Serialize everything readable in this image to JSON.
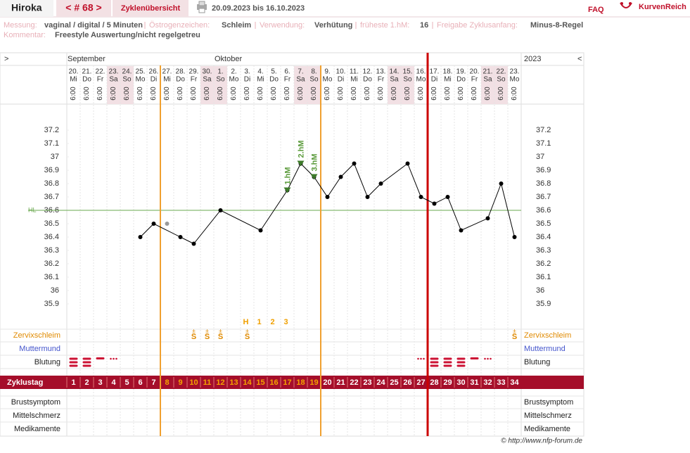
{
  "header": {
    "name": "Hiroka",
    "cycle": "< # 68 >",
    "overview": "Zyklenübersicht",
    "range": "20.09.2023 bis 16.10.2023",
    "faq": "FAQ",
    "logo": "KurvenReich"
  },
  "info": {
    "items": [
      {
        "label": "Messung:",
        "value": "vaginal / digital / 5 Minuten"
      },
      {
        "label": "Östrogenzeichen:",
        "value": "Schleim"
      },
      {
        "label": "Verwendung:",
        "value": "Verhütung"
      },
      {
        "label": "früheste 1.hM:",
        "value": "16"
      },
      {
        "label": "Freigabe Zyklusanfang:",
        "value": "Minus-8-Regel"
      }
    ],
    "comment_label": "Kommentar:",
    "comment": "Freestyle Auswertung/nicht regelgetreu"
  },
  "chart_data": {
    "type": "line",
    "nav_left": ">",
    "nav_right": "<",
    "year": "2023",
    "months": [
      {
        "label": "September",
        "day": 1
      },
      {
        "label": "Oktober",
        "day": 12
      }
    ],
    "dates": [
      "20.",
      "21.",
      "22.",
      "23.",
      "24.",
      "25.",
      "26.",
      "27.",
      "28.",
      "29.",
      "30.",
      "1.",
      "2.",
      "3.",
      "4.",
      "5.",
      "6.",
      "7.",
      "8.",
      "9.",
      "10.",
      "11.",
      "12.",
      "13.",
      "14.",
      "15.",
      "16.",
      "17.",
      "18.",
      "19.",
      "20.",
      "21.",
      "22.",
      "23."
    ],
    "weekdays": [
      "Mi",
      "Do",
      "Fr",
      "Sa",
      "So",
      "Mo",
      "Di",
      "Mi",
      "Do",
      "Fr",
      "Sa",
      "So",
      "Mo",
      "Di",
      "Mi",
      "Do",
      "Fr",
      "Sa",
      "So",
      "Mo",
      "Di",
      "Mi",
      "Do",
      "Fr",
      "Sa",
      "So",
      "Mo",
      "Di",
      "Mi",
      "Do",
      "Fr",
      "Sa",
      "So",
      "Mo"
    ],
    "times": [
      "6:00",
      "6:00",
      "6:00",
      "6:00",
      "6:00",
      "6:00",
      "6:00",
      "6:00",
      "6:00",
      "6:00",
      "6:00",
      "6:00",
      "6:00",
      "6:00",
      "6:00",
      "6:00",
      "6:00",
      "6:00",
      "6:00",
      "6:00",
      "6:00",
      "6:00",
      "6:00",
      "6:00",
      "6:00",
      "6:00",
      "6:00",
      "6:00",
      "6:00",
      "6:00",
      "6:00",
      "6:00",
      "6:00",
      "6:00"
    ],
    "x": [
      6,
      7,
      9,
      10,
      12,
      15,
      17,
      18,
      19,
      20,
      21,
      22,
      23,
      24,
      26,
      27,
      28,
      29,
      30,
      32,
      33,
      34
    ],
    "values": [
      36.4,
      36.5,
      36.4,
      36.35,
      36.6,
      36.45,
      36.75,
      36.95,
      36.85,
      36.7,
      36.85,
      36.95,
      36.7,
      36.8,
      36.95,
      36.7,
      36.65,
      36.7,
      36.45,
      36.54,
      36.8,
      36.4
    ],
    "color": "#000000",
    "excluded": {
      "x": [
        8
      ],
      "values": [
        36.5
      ],
      "color": "#999999"
    },
    "ylim": [
      35.7,
      37.4
    ],
    "yticks": [
      37.2,
      37.1,
      37,
      36.9,
      36.8,
      36.7,
      36.6,
      36.5,
      36.4,
      36.3,
      36.2,
      36.1,
      36,
      35.9
    ],
    "hl": {
      "label": "HL",
      "value": 36.6,
      "color": "#6aa84f"
    },
    "peak_markers": [
      {
        "label": "1.hM",
        "day": 17
      },
      {
        "label": "2.hM",
        "day": 18
      },
      {
        "label": "3.hM",
        "day": 19
      }
    ],
    "mucus_letters": [
      {
        "label": "H",
        "day": 14
      },
      {
        "label": "1",
        "day": 15
      },
      {
        "label": "2",
        "day": 16
      },
      {
        "label": "3",
        "day": 17
      }
    ],
    "cervix": [
      {
        "top": "±",
        "sym": "S",
        "day": 10
      },
      {
        "top": "±",
        "sym": "S",
        "day": 11
      },
      {
        "top": "±",
        "sym": "S",
        "day": 12
      },
      {
        "top": "±",
        "sym": "S",
        "day": 14
      },
      {
        "top": "±",
        "sym": "S",
        "day": 34
      }
    ],
    "row_labels": [
      "Zervixschleim",
      "Muttermund",
      "Blutung",
      "Zyklustag",
      "Brustsymptom",
      "Mittelschmerz",
      "Medikamente"
    ],
    "cycle_days": [
      1,
      2,
      3,
      4,
      5,
      6,
      7,
      8,
      9,
      10,
      11,
      12,
      13,
      14,
      15,
      16,
      17,
      18,
      19,
      20,
      21,
      22,
      23,
      24,
      25,
      26,
      27,
      28,
      29,
      30,
      31,
      32,
      33,
      34
    ]
  },
  "footer": "© http://www.nfp-forum.de"
}
